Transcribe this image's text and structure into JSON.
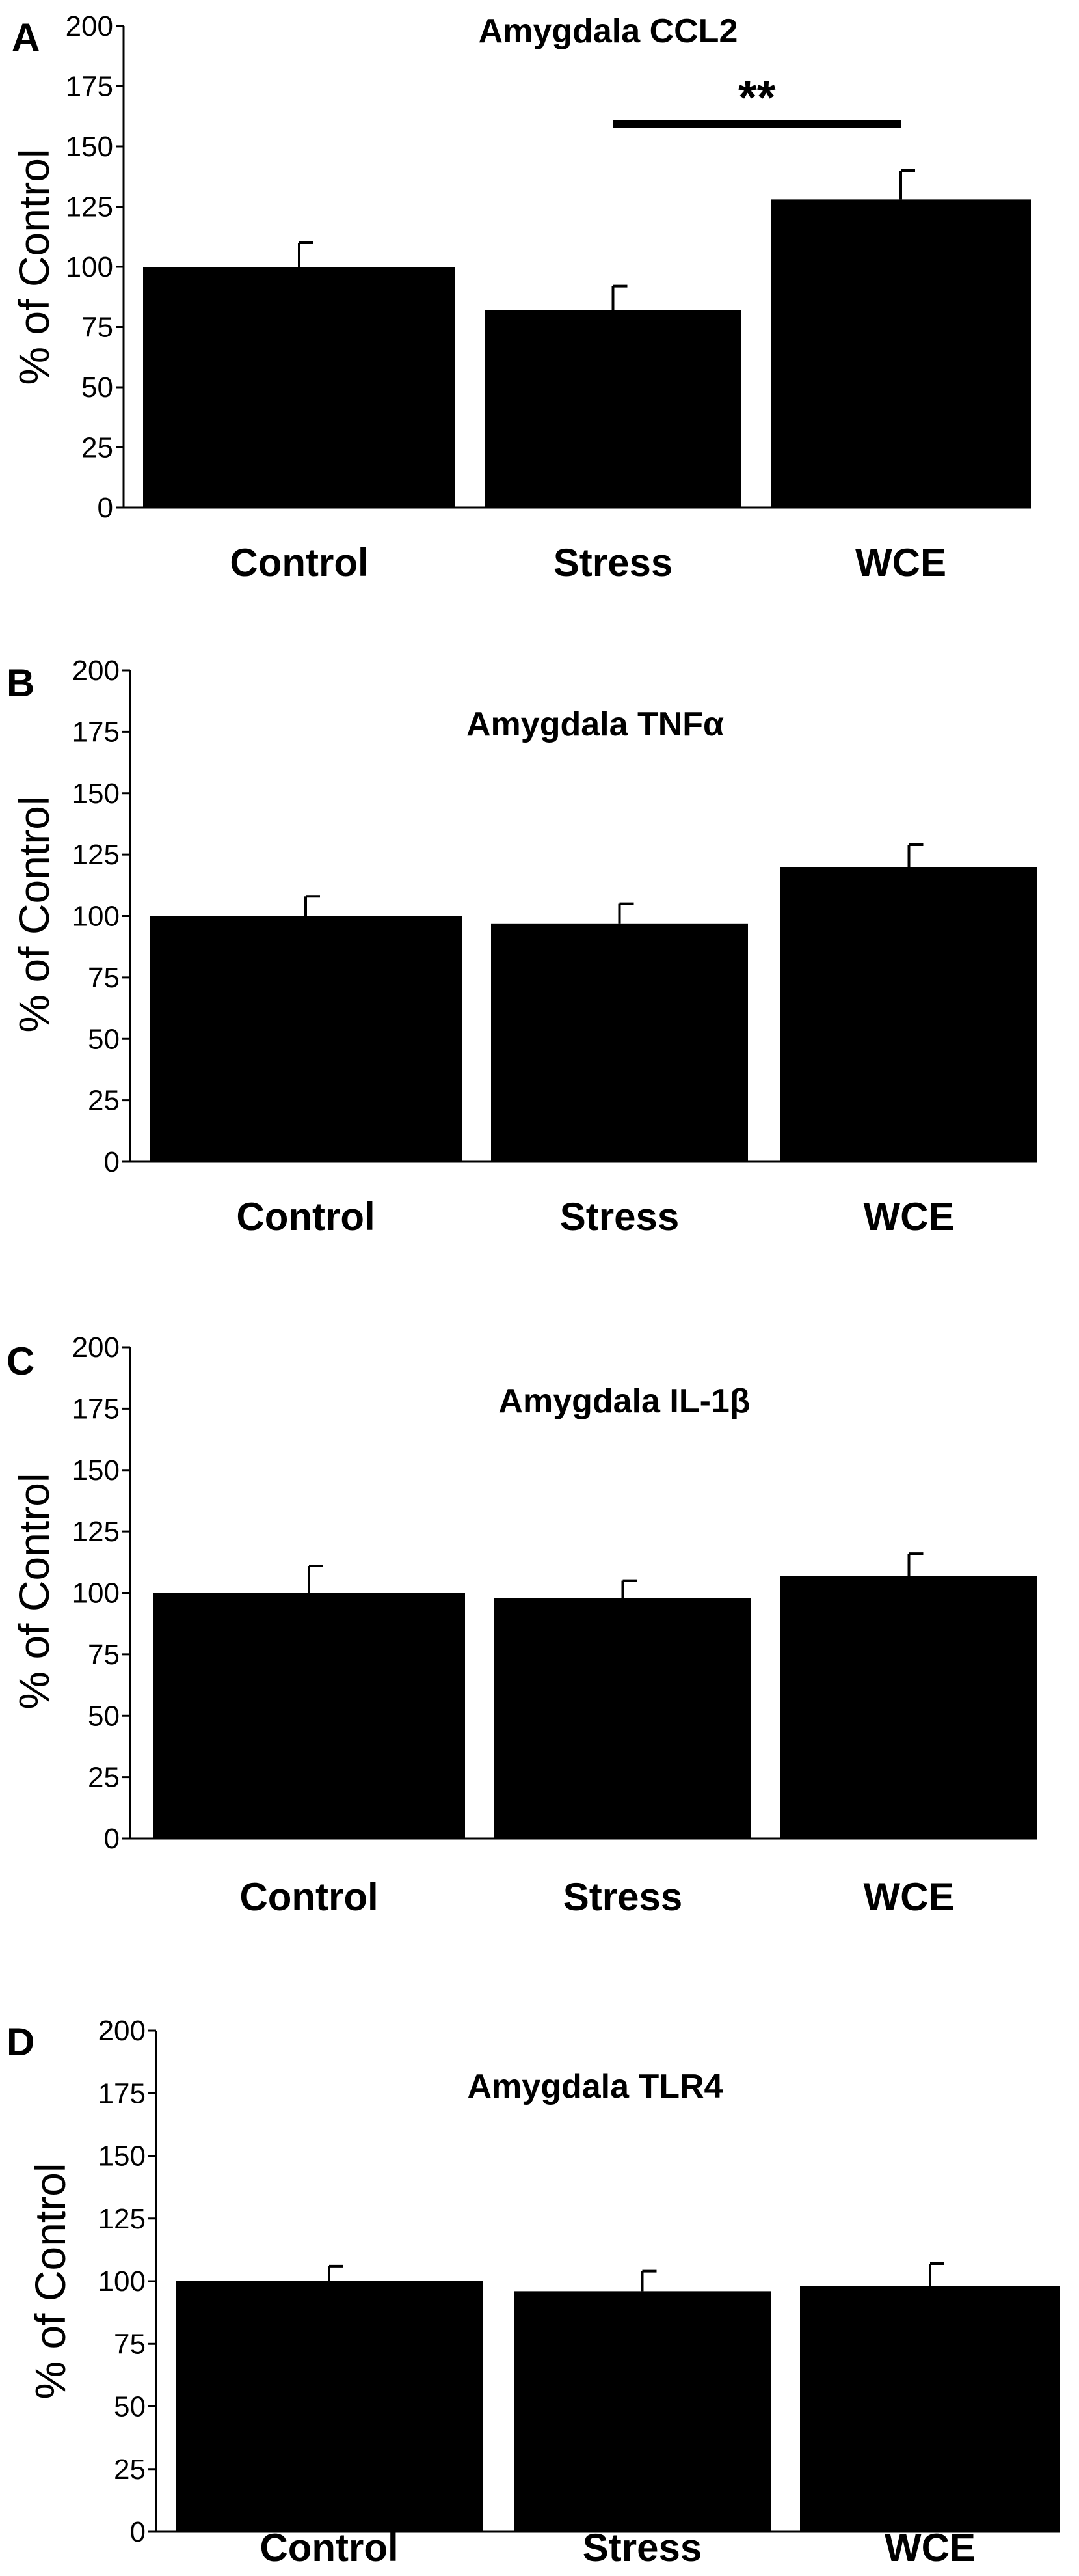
{
  "chart_data": [
    {
      "panel": "A",
      "type": "bar",
      "title": "Amygdala CCL2",
      "categories": [
        "Control",
        "Stress",
        "WCE"
      ],
      "values": [
        100,
        82,
        128
      ],
      "errors": [
        10,
        10,
        12
      ],
      "ylabel": "% of Control",
      "xlabel": "",
      "ylim": [
        0,
        200
      ],
      "yticks": [
        "0",
        "25",
        "50",
        "75",
        "100",
        "125",
        "150",
        "175",
        "200"
      ],
      "significance": {
        "label": "**",
        "from": "Stress",
        "to": "WCE"
      }
    },
    {
      "panel": "B",
      "type": "bar",
      "title": "Amygdala TNFα",
      "categories": [
        "Control",
        "Stress",
        "WCE"
      ],
      "values": [
        100,
        97,
        120
      ],
      "errors": [
        8,
        8,
        9
      ],
      "ylabel": "% of Control",
      "xlabel": "",
      "ylim": [
        0,
        200
      ],
      "yticks": [
        "0",
        "25",
        "50",
        "75",
        "100",
        "125",
        "150",
        "175",
        "200"
      ]
    },
    {
      "panel": "C",
      "type": "bar",
      "title": "Amygdala IL-1β",
      "categories": [
        "Control",
        "Stress",
        "WCE"
      ],
      "values": [
        100,
        98,
        107
      ],
      "errors": [
        11,
        7,
        9
      ],
      "ylabel": "% of Control",
      "xlabel": "",
      "ylim": [
        0,
        200
      ],
      "yticks": [
        "0",
        "25",
        "50",
        "75",
        "100",
        "125",
        "150",
        "175",
        "200"
      ]
    },
    {
      "panel": "D",
      "type": "bar",
      "title": "Amygdala TLR4",
      "categories": [
        "Control",
        "Stress",
        "WCE"
      ],
      "values": [
        100,
        96,
        98
      ],
      "errors": [
        6,
        8,
        9
      ],
      "ylabel": "% of Control",
      "xlabel": "",
      "ylim": [
        0,
        200
      ],
      "yticks": [
        "0",
        "25",
        "50",
        "75",
        "100",
        "125",
        "150",
        "175",
        "200"
      ]
    }
  ]
}
